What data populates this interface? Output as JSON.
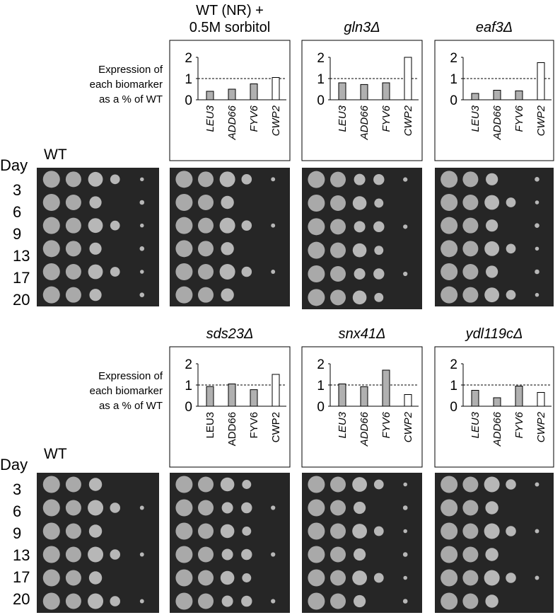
{
  "chart_data": [
    {
      "type": "bar",
      "title": [
        "WT (NR) +",
        "0.5M sorbitol"
      ],
      "title_italic": false,
      "categories": [
        "LEU3",
        "ADD66",
        "FYV6",
        "CWP2"
      ],
      "categories_italic": true,
      "values": [
        0.4,
        0.5,
        0.75,
        1.05
      ],
      "colors": [
        "#b0b0b0",
        "#b0b0b0",
        "#b0b0b0",
        "#ffffff"
      ],
      "ylim": [
        0,
        2
      ],
      "yticks": [
        0,
        1,
        2
      ],
      "reference_line": 1
    },
    {
      "type": "bar",
      "title": [
        "gln3Δ"
      ],
      "title_italic": true,
      "categories": [
        "LEU3",
        "ADD66",
        "FYV6",
        "CWP2"
      ],
      "categories_italic": true,
      "values": [
        0.8,
        0.72,
        0.8,
        2.0
      ],
      "colors": [
        "#b0b0b0",
        "#b0b0b0",
        "#b0b0b0",
        "#ffffff"
      ],
      "ylim": [
        0,
        2
      ],
      "yticks": [
        0,
        1,
        2
      ],
      "reference_line": 1
    },
    {
      "type": "bar",
      "title": [
        "eaf3Δ"
      ],
      "title_italic": true,
      "categories": [
        "LEU3",
        "ADD66",
        "FYV6",
        "CWP2"
      ],
      "categories_italic": true,
      "values": [
        0.3,
        0.45,
        0.42,
        1.75
      ],
      "colors": [
        "#b0b0b0",
        "#b0b0b0",
        "#b0b0b0",
        "#ffffff"
      ],
      "ylim": [
        0,
        2
      ],
      "yticks": [
        0,
        1,
        2
      ],
      "reference_line": 1
    },
    {
      "type": "bar",
      "title": [
        "sds23Δ"
      ],
      "title_italic": true,
      "categories": [
        "LEU3",
        "ADD66",
        "FYV6",
        "CWP2"
      ],
      "categories_italic": false,
      "values": [
        0.93,
        1.05,
        0.78,
        1.5
      ],
      "colors": [
        "#b0b0b0",
        "#b0b0b0",
        "#b0b0b0",
        "#ffffff"
      ],
      "ylim": [
        0,
        2
      ],
      "yticks": [
        0,
        1,
        2
      ],
      "reference_line": 1
    },
    {
      "type": "bar",
      "title": [
        "snx41Δ"
      ],
      "title_italic": true,
      "categories": [
        "LEU3",
        "ADD66",
        "FYV6",
        "CWP2"
      ],
      "categories_italic": true,
      "values": [
        1.05,
        0.92,
        1.7,
        0.55
      ],
      "colors": [
        "#b0b0b0",
        "#b0b0b0",
        "#b0b0b0",
        "#ffffff"
      ],
      "ylim": [
        0,
        2
      ],
      "yticks": [
        0,
        1,
        2
      ],
      "reference_line": 1
    },
    {
      "type": "bar",
      "title": [
        "ydl119cΔ"
      ],
      "title_italic": true,
      "categories": [
        "LEU3",
        "ADD66",
        "FYV6",
        "CWP2"
      ],
      "categories_italic": true,
      "values": [
        0.75,
        0.4,
        0.95,
        0.65
      ],
      "colors": [
        "#b0b0b0",
        "#b0b0b0",
        "#b0b0b0",
        "#ffffff"
      ],
      "ylim": [
        0,
        2
      ],
      "yticks": [
        0,
        1,
        2
      ],
      "reference_line": 1
    }
  ],
  "panels": [
    {
      "expression_label": [
        "Expression of",
        "each biomarker",
        "as a % of WT"
      ],
      "strain": "WT",
      "day_header": "Day",
      "days": [
        "3",
        "6",
        "9",
        "13",
        "17",
        "20"
      ]
    },
    {
      "expression_label": [
        "Expression of",
        "each biomarker",
        "as a % of WT"
      ],
      "strain": "WT",
      "day_header": "Day",
      "days": [
        "3",
        "6",
        "9",
        "13",
        "17",
        "20"
      ]
    }
  ]
}
